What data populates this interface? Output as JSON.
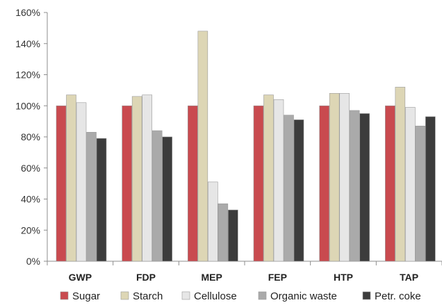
{
  "chart_data": {
    "type": "bar",
    "title": "",
    "xlabel": "",
    "ylabel": "",
    "categories": [
      "GWP",
      "FDP",
      "MEP",
      "FEP",
      "HTP",
      "TAP"
    ],
    "ylim": [
      0,
      160
    ],
    "yticks": [
      0,
      20,
      40,
      60,
      80,
      100,
      120,
      140,
      160
    ],
    "ytick_labels": [
      "0%",
      "20%",
      "40%",
      "60%",
      "80%",
      "100%",
      "120%",
      "140%",
      "160%"
    ],
    "grid": false,
    "legend_position": "bottom",
    "series": [
      {
        "name": "Sugar",
        "color": "#c94a4f",
        "values": [
          100,
          100,
          100,
          100,
          100,
          100
        ]
      },
      {
        "name": "Starch",
        "color": "#ddd6b5",
        "values": [
          107,
          106,
          148,
          107,
          108,
          112
        ]
      },
      {
        "name": "Cellulose",
        "color": "#e6e6e6",
        "values": [
          102,
          107,
          51,
          104,
          108,
          99
        ]
      },
      {
        "name": "Organic waste",
        "color": "#aaaaaa",
        "values": [
          83,
          84,
          37,
          94,
          97,
          87
        ]
      },
      {
        "name": "Petr. coke",
        "color": "#3c3c3c",
        "values": [
          79,
          80,
          33,
          91,
          95,
          93
        ]
      }
    ]
  }
}
